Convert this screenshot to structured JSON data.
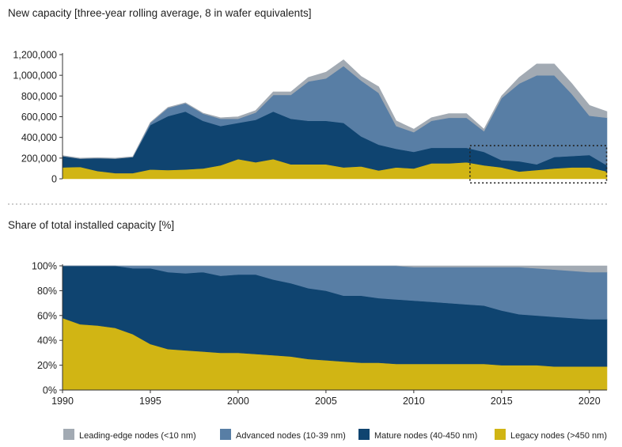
{
  "chart_data": [
    {
      "type": "area",
      "stacked": true,
      "title": "New capacity [three-year rolling average, 8 in wafer equivalents]",
      "xlabel": "",
      "ylabel": "",
      "xlim": [
        1990,
        2021
      ],
      "ylim": [
        0,
        1200000
      ],
      "y_ticks": [
        0,
        200000,
        400000,
        600000,
        800000,
        1000000,
        1200000
      ],
      "y_tick_labels": [
        "0",
        "200,000",
        "400,000",
        "600,000",
        "800,000",
        "1,000,000",
        "1,200,000"
      ],
      "grid": false,
      "x": [
        1990,
        1991,
        1992,
        1993,
        1994,
        1995,
        1996,
        1997,
        1998,
        1999,
        2000,
        2001,
        2002,
        2003,
        2004,
        2005,
        2006,
        2007,
        2008,
        2009,
        2010,
        2011,
        2012,
        2013,
        2014,
        2015,
        2016,
        2017,
        2018,
        2019,
        2020,
        2021
      ],
      "series": [
        {
          "name": "Legacy nodes (>450 nm)",
          "color": "#d1b514",
          "values": [
            110000,
            115000,
            75000,
            55000,
            55000,
            90000,
            85000,
            90000,
            100000,
            130000,
            190000,
            160000,
            190000,
            140000,
            140000,
            140000,
            110000,
            120000,
            80000,
            110000,
            100000,
            150000,
            150000,
            160000,
            130000,
            110000,
            70000,
            85000,
            100000,
            110000,
            110000,
            70000
          ]
        },
        {
          "name": "Mature nodes (40-450 nm)",
          "color": "#0f4470",
          "values": [
            110000,
            80000,
            125000,
            140000,
            155000,
            430000,
            520000,
            560000,
            460000,
            380000,
            350000,
            410000,
            460000,
            440000,
            420000,
            420000,
            430000,
            290000,
            250000,
            180000,
            160000,
            150000,
            150000,
            140000,
            130000,
            70000,
            100000,
            55000,
            110000,
            110000,
            120000,
            60000
          ]
        },
        {
          "name": "Advanced nodes (10-39 nm)",
          "color": "#587ea5",
          "values": [
            0,
            0,
            0,
            0,
            0,
            20000,
            80000,
            80000,
            70000,
            70000,
            40000,
            70000,
            160000,
            230000,
            380000,
            410000,
            550000,
            540000,
            500000,
            220000,
            190000,
            260000,
            290000,
            290000,
            200000,
            600000,
            750000,
            860000,
            790000,
            600000,
            380000,
            460000
          ]
        },
        {
          "name": "Leading-edge nodes (<10 nm)",
          "color": "#a2aab3",
          "values": [
            5000,
            5000,
            5000,
            5000,
            5000,
            5000,
            5000,
            5000,
            5000,
            10000,
            20000,
            20000,
            30000,
            30000,
            40000,
            60000,
            60000,
            40000,
            60000,
            50000,
            30000,
            30000,
            40000,
            40000,
            20000,
            20000,
            60000,
            110000,
            110000,
            100000,
            100000,
            60000
          ]
        }
      ],
      "annotations": [
        "dotted box highlighting 2013-2021 legacy and mature nodes"
      ]
    },
    {
      "type": "area",
      "stacked": true,
      "title": "Share of total installed capacity [%]",
      "xlabel": "",
      "ylabel": "",
      "xlim": [
        1990,
        2021
      ],
      "ylim": [
        0,
        100
      ],
      "y_ticks": [
        0,
        20,
        40,
        60,
        80,
        100
      ],
      "y_tick_labels": [
        "0%",
        "20%",
        "40%",
        "60%",
        "80%",
        "100%"
      ],
      "x_ticks": [
        1990,
        1995,
        2000,
        2005,
        2010,
        2015,
        2020
      ],
      "x_tick_labels": [
        "1990",
        "1995",
        "2000",
        "2005",
        "2010",
        "2015",
        "2020"
      ],
      "grid": false,
      "x": [
        1990,
        1991,
        1992,
        1993,
        1994,
        1995,
        1996,
        1997,
        1998,
        1999,
        2000,
        2001,
        2002,
        2003,
        2004,
        2005,
        2006,
        2007,
        2008,
        2009,
        2010,
        2011,
        2012,
        2013,
        2014,
        2015,
        2016,
        2017,
        2018,
        2019,
        2020,
        2021
      ],
      "series": [
        {
          "name": "Legacy nodes (>450 nm)",
          "color": "#d1b514",
          "values": [
            58,
            53,
            52,
            50,
            45,
            37,
            33,
            32,
            31,
            30,
            30,
            29,
            28,
            27,
            25,
            24,
            23,
            22,
            22,
            21,
            21,
            21,
            21,
            21,
            21,
            20,
            20,
            20,
            19,
            19,
            19,
            19
          ]
        },
        {
          "name": "Mature nodes (40-450 nm)",
          "color": "#0f4470",
          "values": [
            42,
            47,
            48,
            50,
            53,
            61,
            62,
            62,
            64,
            62,
            63,
            64,
            61,
            59,
            57,
            56,
            53,
            54,
            52,
            52,
            51,
            50,
            49,
            48,
            47,
            44,
            41,
            40,
            40,
            39,
            38,
            38
          ]
        },
        {
          "name": "Advanced nodes (10-39 nm)",
          "color": "#587ea5",
          "values": [
            0,
            0,
            0,
            0,
            2,
            2,
            5,
            6,
            5,
            8,
            7,
            7,
            11,
            14,
            18,
            20,
            24,
            24,
            26,
            27,
            27,
            28,
            29,
            30,
            31,
            35,
            38,
            38,
            38,
            38,
            38,
            38
          ]
        },
        {
          "name": "Leading-edge nodes (<10 nm)",
          "color": "#a2aab3",
          "values": [
            0,
            0,
            0,
            0,
            0,
            0,
            0,
            0,
            0,
            0,
            0,
            0,
            0,
            0,
            0,
            0,
            0,
            0,
            0,
            0,
            1,
            1,
            1,
            1,
            1,
            1,
            1,
            2,
            3,
            4,
            5,
            5
          ]
        }
      ]
    }
  ],
  "legend": {
    "placement": "bottom",
    "items": [
      {
        "label": "Leading-edge nodes (<10 nm)",
        "color": "#a2aab3"
      },
      {
        "label": "Advanced nodes (10-39 nm)",
        "color": "#587ea5"
      },
      {
        "label": "Mature nodes (40-450 nm)",
        "color": "#0f4470"
      },
      {
        "label": "Legacy nodes (>450 nm)",
        "color": "#d1b514"
      }
    ]
  }
}
